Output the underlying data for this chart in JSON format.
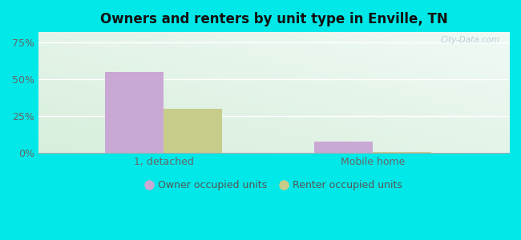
{
  "title": "Owners and renters by unit type in Enville, TN",
  "categories": [
    "1, detached",
    "Mobile home"
  ],
  "owner_values": [
    55.0,
    7.5
  ],
  "renter_values": [
    30.0,
    0.8
  ],
  "owner_color": "#c9a8d4",
  "renter_color": "#c8cc8a",
  "owner_label": "Owner occupied units",
  "renter_label": "Renter occupied units",
  "yticks": [
    0,
    25,
    50,
    75
  ],
  "yticklabels": [
    "0%",
    "25%",
    "50%",
    "75%"
  ],
  "ylim": [
    0,
    82
  ],
  "outer_bg": "#00e8e8",
  "watermark": "City-Data.com",
  "bar_width": 0.28,
  "title_fontsize": 12,
  "tick_fontsize": 9,
  "legend_fontsize": 9
}
